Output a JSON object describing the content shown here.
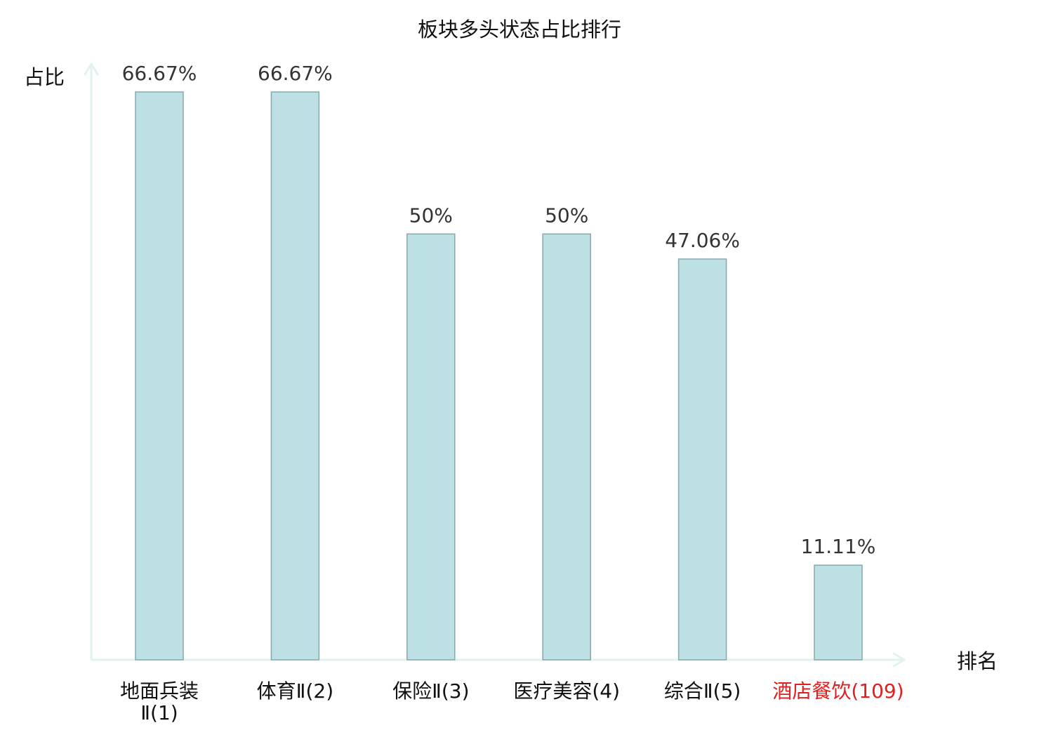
{
  "chart_data": {
    "type": "bar",
    "title": "板块多头状态占比排行",
    "ylabel": "占比",
    "xlabel": "排名",
    "categories": [
      "地面兵装Ⅱ(1)",
      "体育Ⅱ(2)",
      "保险Ⅱ(3)",
      "医疗美容(4)",
      "综合Ⅱ(5)",
      "酒店餐饮(109)"
    ],
    "category_lines": [
      [
        "地面兵装",
        "Ⅱ(1)"
      ],
      [
        "体育Ⅱ(2)"
      ],
      [
        "保险Ⅱ(3)"
      ],
      [
        "医疗美容(4)"
      ],
      [
        "综合Ⅱ(5)"
      ],
      [
        "酒店餐饮(109)"
      ]
    ],
    "values": [
      66.67,
      66.67,
      50,
      50,
      47.06,
      11.11
    ],
    "value_labels": [
      "66.67%",
      "66.67%",
      "50%",
      "50%",
      "47.06%",
      "11.11%"
    ],
    "highlight_index": 5,
    "ylim": [
      0,
      66.67
    ],
    "grid": false,
    "colors": {
      "bar_fill": "#bce0e3",
      "bar_stroke": "#89a8ab",
      "axis": "#e2f2f0",
      "highlight_text": "#e02020",
      "value_text": "#333333",
      "text": "#111111"
    }
  }
}
